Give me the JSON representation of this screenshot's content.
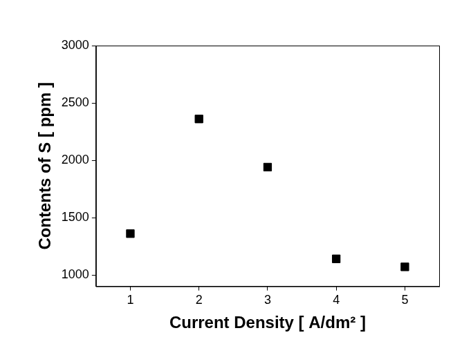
{
  "chart_data": {
    "type": "scatter",
    "x_label": "Current Density [ A/dm² ]",
    "y_label": "Contents of S [ ppm ]",
    "x": [
      1,
      2,
      3,
      4,
      5
    ],
    "values": [
      1360,
      2360,
      1940,
      1140,
      1070
    ],
    "color": "#000000",
    "marker": "square",
    "xlim": [
      0.5,
      5.5
    ],
    "xticks": [
      1,
      2,
      3,
      4,
      5
    ],
    "ylim": [
      900,
      3000
    ],
    "yticks": [
      1000,
      1500,
      2000,
      2500,
      3000
    ],
    "grid": false
  }
}
